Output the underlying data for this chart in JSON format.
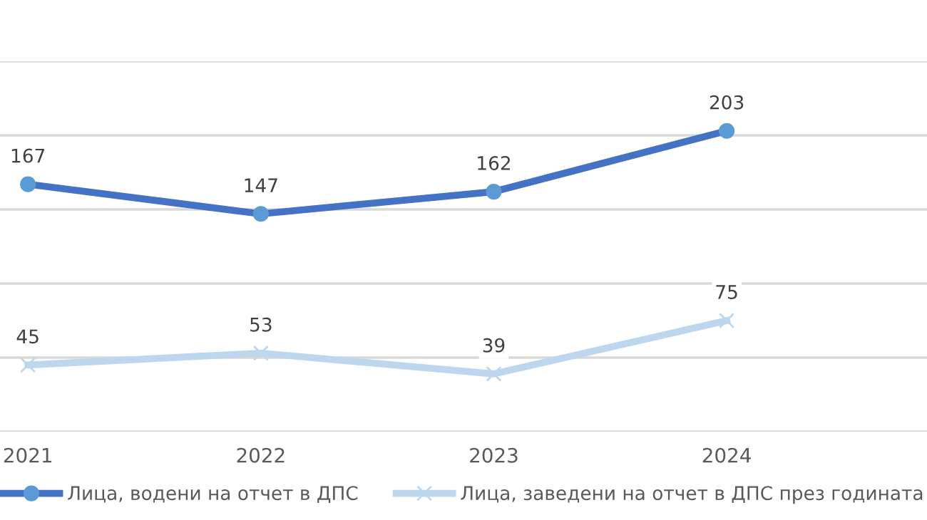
{
  "chart_data": {
    "type": "line",
    "x": [
      2021,
      2022,
      2023,
      2024
    ],
    "xlim": [
      2020.88,
      2024.86
    ],
    "xticks": [
      2021,
      2022,
      2023,
      2024
    ],
    "ylim": [
      0,
      250
    ],
    "yticks": [
      {
        "value": 0,
        "label": null
      },
      {
        "value": 50,
        "label": null
      },
      {
        "value": 100,
        "label": null
      },
      {
        "value": 150,
        "label": null
      },
      {
        "value": 200,
        "label": null
      },
      {
        "value": 250,
        "label": null
      }
    ],
    "tick_labels": "x",
    "grid": "y",
    "legend": "bottom",
    "data_labels": true,
    "line_style": "solid",
    "series": [
      {
        "name": "Лица, водени на отчет в ДПС",
        "color": "#4472c4",
        "marker": "circle",
        "values": [
          167,
          147,
          162,
          203
        ]
      },
      {
        "name": "Лица, заведени на отчет в ДПС през годината",
        "color": "#bdd7ee",
        "marker": "cross",
        "values": [
          45,
          53,
          39,
          75
        ]
      }
    ]
  }
}
